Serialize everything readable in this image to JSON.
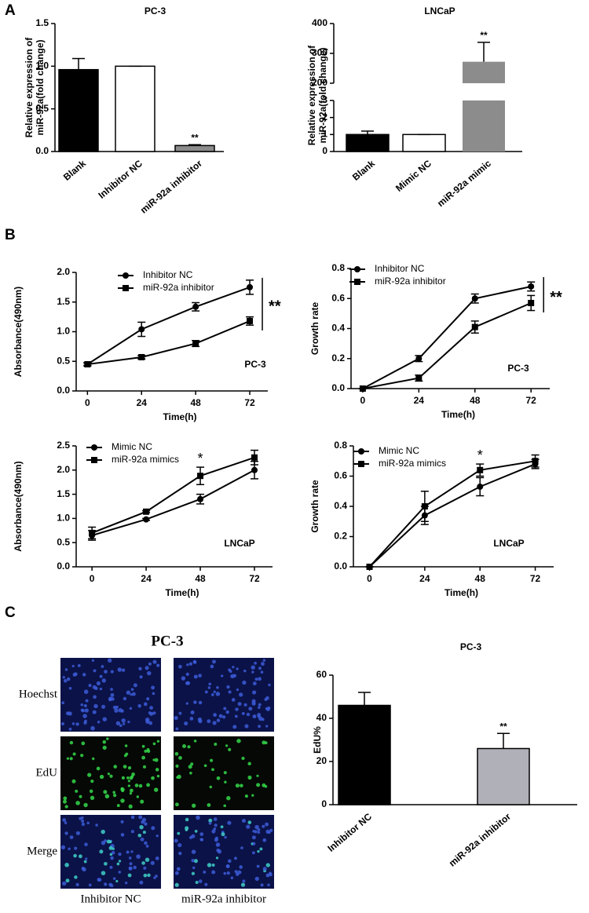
{
  "panel_labels": [
    "A",
    "B",
    "C"
  ],
  "chart_data": [
    {
      "type": "bar",
      "title": "PC-3",
      "ylabel": [
        "Relative expression of",
        "miR-92a(fold change)"
      ],
      "categories": [
        "Blank",
        "Inhibitor NC",
        "miR-92a inhibitor"
      ],
      "values": [
        0.96,
        1.0,
        0.07
      ],
      "errors": [
        0.13,
        0,
        0.01
      ],
      "colors": [
        "#000000",
        "#ffffff",
        "#8c8c8c"
      ],
      "annotations": [
        null,
        null,
        "**"
      ],
      "ylim": [
        0,
        1.5
      ],
      "yticks": [
        {
          "value": 0,
          "label": "0.0"
        },
        0.5,
        {
          "value": 1,
          "label": "1.0"
        },
        1.5
      ]
    },
    {
      "type": "bar",
      "title": "LNCaP",
      "ylabel": [
        "Relative expression of",
        "miR-92a(fold change)"
      ],
      "categories": [
        "Blank",
        "Mimic NC",
        "miR-92a mimic"
      ],
      "values": [
        1.0,
        1.0,
        272
      ],
      "errors": [
        0.2,
        0,
        65
      ],
      "colors": [
        "#000000",
        "#ffffff",
        "#8c8c8c"
      ],
      "annotations": [
        null,
        null,
        "**"
      ],
      "ylim": [
        0,
        400
      ],
      "axis_break": [
        3,
        200
      ],
      "yticks": [
        0,
        1,
        2,
        3,
        200,
        300,
        400
      ]
    },
    {
      "type": "line",
      "label": "PC-3",
      "xlabel": "Time(h)",
      "ylabel": "Absorbance(490nm)",
      "x": [
        0,
        24,
        48,
        72
      ],
      "xlim": [
        -5,
        80
      ],
      "xticks": [
        0,
        24,
        48,
        72
      ],
      "ylim": [
        0,
        2
      ],
      "yticks": [
        {
          "value": 0,
          "label": "0.0"
        },
        0.5,
        {
          "value": 1,
          "label": "1.0"
        },
        1.5,
        {
          "value": 2,
          "label": "2.0"
        }
      ],
      "annotations": [
        null,
        null,
        null,
        "**"
      ],
      "series": [
        {
          "name": "Inhibitor NC",
          "color": "#000000",
          "marker": "circle",
          "values": [
            0.45,
            1.04,
            1.42,
            1.75
          ],
          "errors": [
            0.03,
            0.12,
            0.07,
            0.12
          ]
        },
        {
          "name": "miR-92a inhibitor",
          "color": "#000000",
          "marker": "square",
          "values": [
            0.45,
            0.57,
            0.8,
            1.18
          ],
          "errors": [
            0.02,
            0.03,
            0.05,
            0.07
          ]
        }
      ]
    },
    {
      "type": "line",
      "label": "PC-3",
      "xlabel": "Time(h)",
      "ylabel": "Growth rate",
      "x": [
        0,
        24,
        48,
        72
      ],
      "xlim": [
        -5,
        80
      ],
      "xticks": [
        0,
        24,
        48,
        72
      ],
      "ylim": [
        0,
        0.8
      ],
      "yticks": [
        {
          "value": 0,
          "label": "0.0"
        },
        0.2,
        0.4,
        0.6,
        0.8
      ],
      "annotations": [
        null,
        null,
        null,
        "**"
      ],
      "series": [
        {
          "name": "Inhibitor NC",
          "color": "#000000",
          "marker": "circle",
          "values": [
            0,
            0.2,
            0.6,
            0.68
          ],
          "errors": [
            0,
            0.02,
            0.03,
            0.03
          ]
        },
        {
          "name": "miR-92a inhibitor",
          "color": "#000000",
          "marker": "square",
          "values": [
            0,
            0.07,
            0.41,
            0.57
          ],
          "errors": [
            0,
            0.02,
            0.04,
            0.05
          ]
        }
      ]
    },
    {
      "type": "line",
      "label": "LNCaP",
      "xlabel": "Time(h)",
      "ylabel": "Absorbance(490nm)",
      "x": [
        0,
        24,
        48,
        72
      ],
      "xlim": [
        -7,
        80
      ],
      "xticks": [
        0,
        24,
        48,
        72
      ],
      "ylim": [
        0,
        2.5
      ],
      "yticks": [
        {
          "value": 0,
          "label": "0.0"
        },
        0.5,
        {
          "value": 1,
          "label": "1.0"
        },
        1.5,
        {
          "value": 2,
          "label": "2.0"
        },
        2.5
      ],
      "annotations": [
        null,
        null,
        "*",
        null
      ],
      "series": [
        {
          "name": "Mimic NC",
          "color": "#000000",
          "marker": "circle",
          "values": [
            0.65,
            0.98,
            1.4,
            2.0
          ],
          "errors": [
            0.1,
            0.02,
            0.1,
            0.18
          ]
        },
        {
          "name": "miR-92a mimics",
          "color": "#000000",
          "marker": "square",
          "values": [
            0.7,
            1.14,
            1.88,
            2.26
          ],
          "errors": [
            0.12,
            0.02,
            0.18,
            0.15
          ]
        }
      ]
    },
    {
      "type": "line",
      "label": "LNCaP",
      "xlabel": "Time(h)",
      "ylabel": "Growth rate",
      "x": [
        0,
        24,
        48,
        72
      ],
      "xlim": [
        -7,
        80
      ],
      "xticks": [
        0,
        24,
        48,
        72
      ],
      "ylim": [
        0,
        0.8
      ],
      "yticks": [
        {
          "value": 0,
          "label": "0.0"
        },
        0.2,
        0.4,
        0.6,
        0.8
      ],
      "annotations": [
        null,
        null,
        "*",
        null
      ],
      "series": [
        {
          "name": "Mimic NC",
          "color": "#000000",
          "marker": "circle",
          "values": [
            0,
            0.34,
            0.53,
            0.68
          ],
          "errors": [
            0,
            0.06,
            0.06,
            0.03
          ]
        },
        {
          "name": "miR-92a mimics",
          "color": "#000000",
          "marker": "square",
          "values": [
            0,
            0.4,
            0.64,
            0.7
          ],
          "errors": [
            0,
            0.1,
            0.04,
            0.04
          ]
        }
      ]
    },
    {
      "type": "bar",
      "title": "PC-3",
      "ylabel": [
        "EdU%"
      ],
      "categories": [
        "Inhibitor NC",
        "miR-92a inhibitor"
      ],
      "values": [
        46,
        26
      ],
      "errors": [
        6,
        7
      ],
      "colors": [
        "#000000",
        "#b0b0b8"
      ],
      "annotations": [
        null,
        "**"
      ],
      "ylim": [
        0,
        60
      ],
      "yticks": [
        0,
        20,
        40,
        60
      ]
    }
  ],
  "images": {
    "title": "PC-3",
    "rows": [
      "Hoechst",
      "EdU",
      "Merge"
    ],
    "columns": [
      "Inhibitor NC",
      "miR-92a inhibitor"
    ]
  }
}
